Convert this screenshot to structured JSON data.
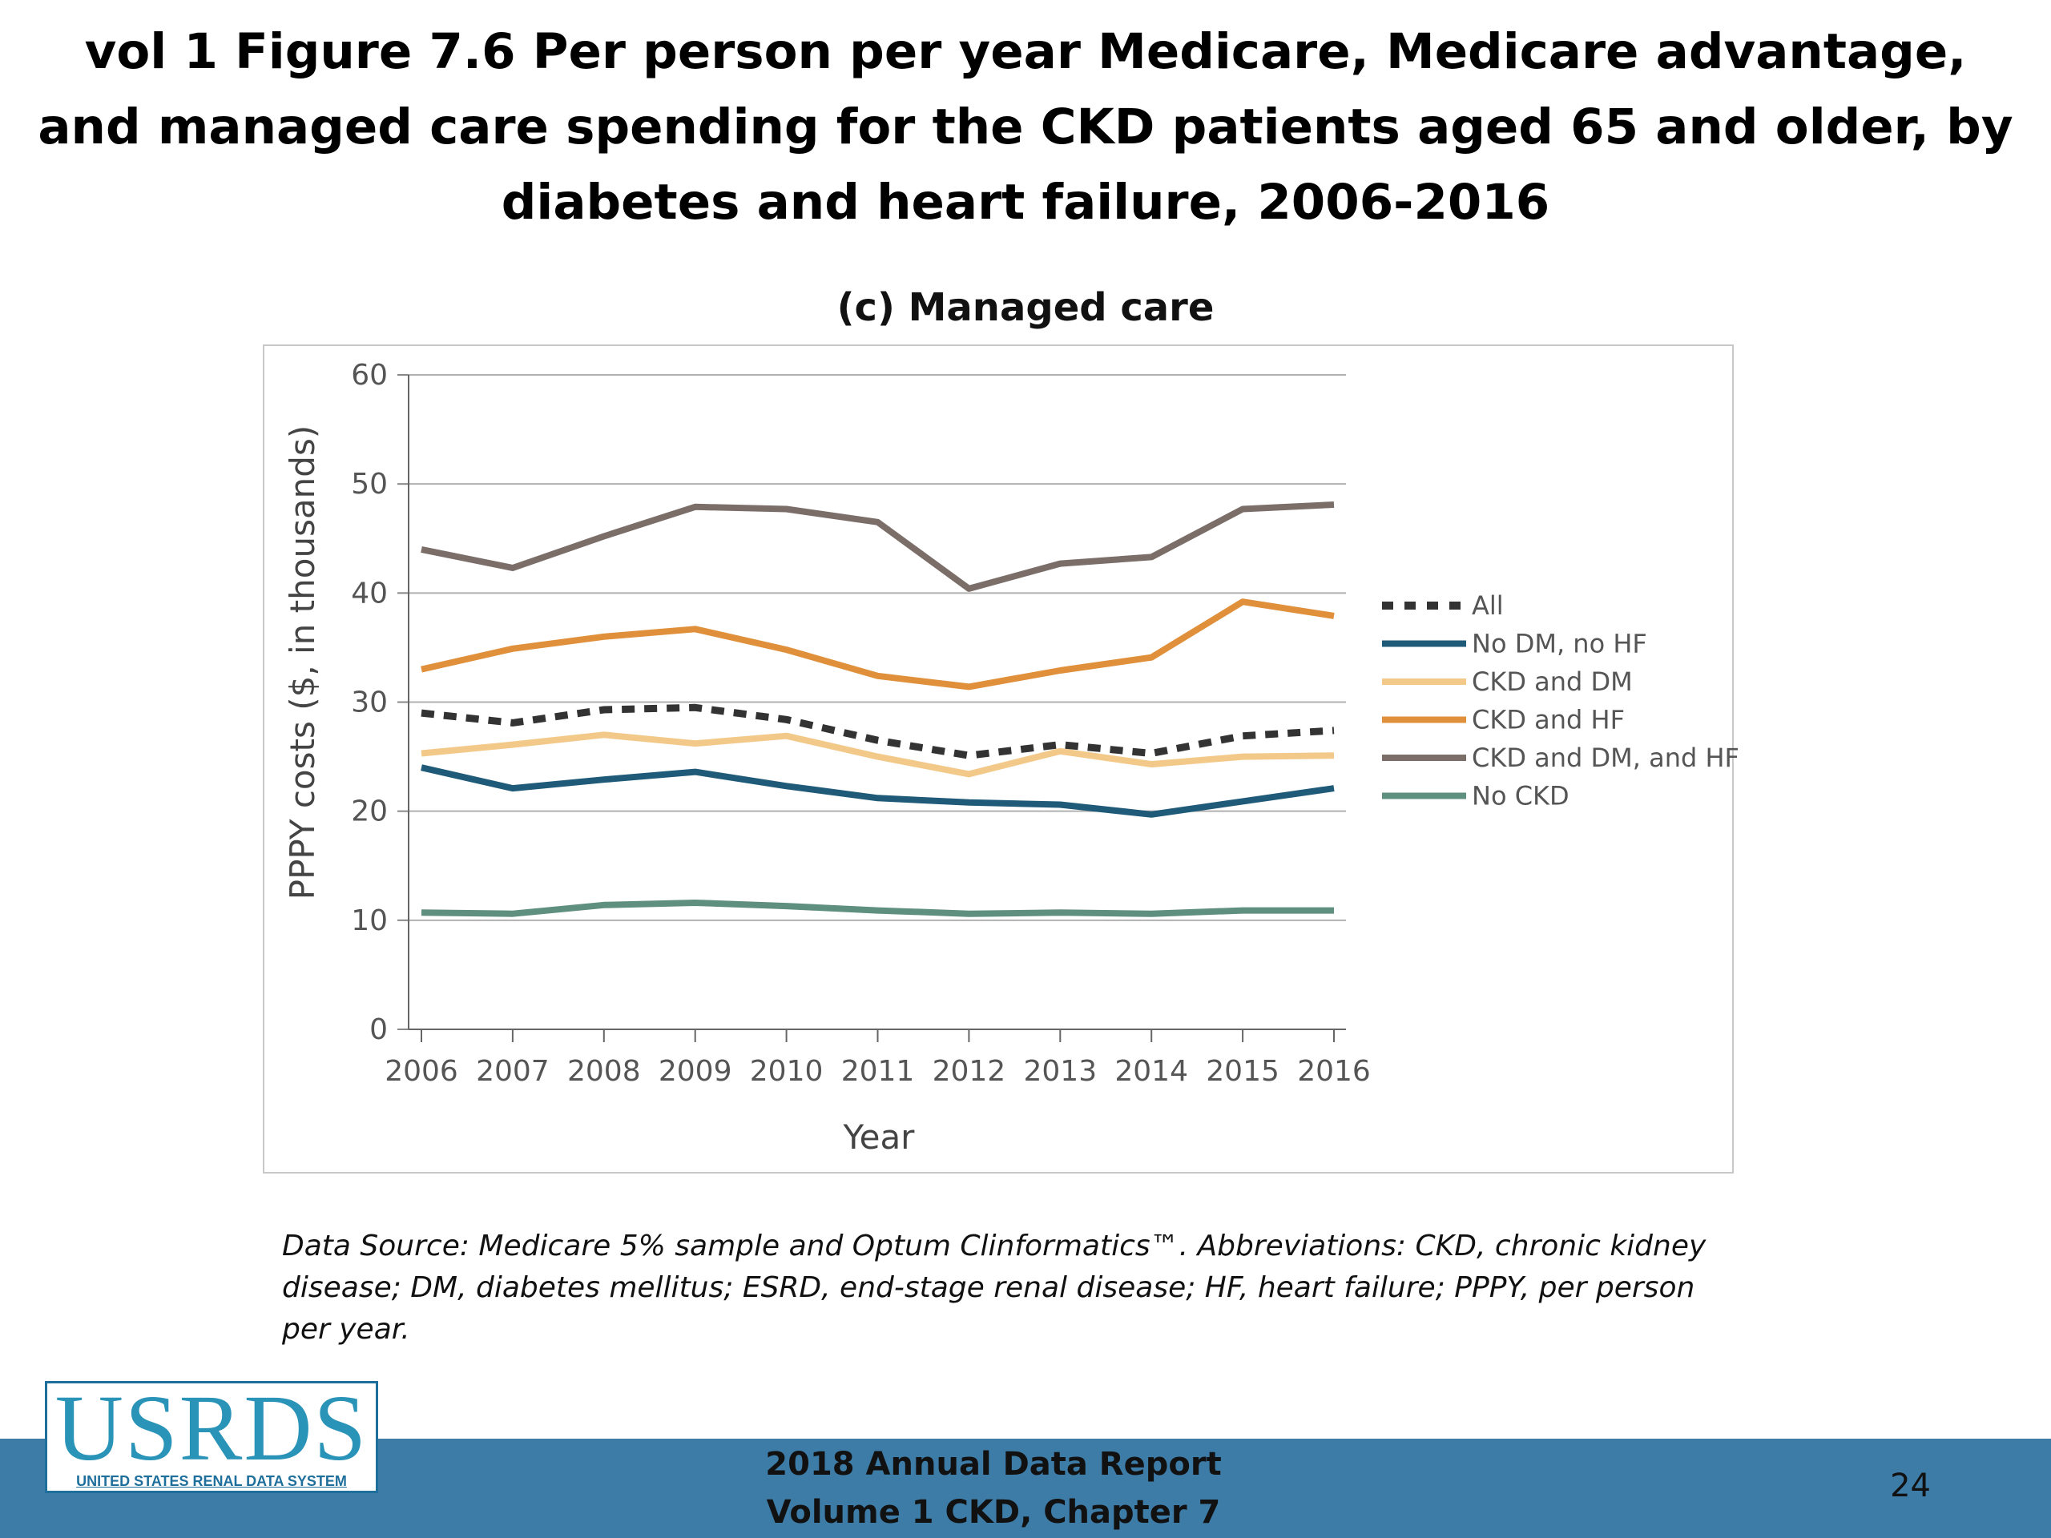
{
  "slide": {
    "title": "vol 1 Figure 7.6 Per person per year Medicare, Medicare advantage, and managed care spending for the CKD patients aged 65 and older, by diabetes and heart failure, 2006-2016",
    "note": "Data Source: Medicare 5% sample and Optum Clinformatics™. Abbreviations: CKD, chronic kidney disease; DM, diabetes mellitus; ESRD, end-stage renal disease; HF, heart failure; PPPY, per person per year.",
    "page_number": "24"
  },
  "footer": {
    "line1": "2018 Annual Data Report",
    "line2": "Volume 1 CKD, Chapter 7"
  },
  "logo": {
    "main": "USRDS",
    "sub": "UNITED STATES RENAL DATA SYSTEM"
  },
  "colors": {
    "footer_band": "#3e7ca8",
    "gridline": "#b0b0b0"
  },
  "chart_data": {
    "type": "line",
    "title": "(c) Managed care",
    "xlabel": "Year",
    "ylabel": "PPPY costs ($, in thousands)",
    "ylim": [
      0,
      60
    ],
    "yticks": [
      0,
      10,
      20,
      30,
      40,
      50,
      60
    ],
    "grid": true,
    "legend_position": "right",
    "x": [
      "2006",
      "2007",
      "2008",
      "2009",
      "2010",
      "2011",
      "2012",
      "2013",
      "2014",
      "2015",
      "2016"
    ],
    "series": [
      {
        "name": "All",
        "color": "#333333",
        "style": "dashed",
        "values": [
          29.0,
          28.1,
          29.3,
          29.5,
          28.4,
          26.5,
          25.1,
          26.1,
          25.3,
          26.9,
          27.4
        ]
      },
      {
        "name": "No DM, no HF",
        "color": "#1f5a78",
        "style": "solid",
        "values": [
          24.0,
          22.1,
          22.9,
          23.6,
          22.3,
          21.2,
          20.8,
          20.6,
          19.7,
          20.9,
          22.1
        ]
      },
      {
        "name": "CKD and DM",
        "color": "#f3c98a",
        "style": "solid",
        "values": [
          25.3,
          26.1,
          27.0,
          26.2,
          26.9,
          25.0,
          23.4,
          25.5,
          24.3,
          25.0,
          25.1
        ]
      },
      {
        "name": "CKD and HF",
        "color": "#e08f3a",
        "style": "solid",
        "values": [
          33.0,
          34.9,
          36.0,
          36.7,
          34.8,
          32.4,
          31.4,
          32.9,
          34.1,
          39.2,
          37.9
        ]
      },
      {
        "name": "CKD and DM, and HF",
        "color": "#7b6e69",
        "style": "solid",
        "values": [
          44.0,
          42.3,
          45.2,
          47.9,
          47.7,
          46.5,
          40.4,
          42.7,
          43.3,
          47.7,
          48.1
        ]
      },
      {
        "name": "No CKD",
        "color": "#5f8f7f",
        "style": "solid",
        "values": [
          10.7,
          10.6,
          11.4,
          11.6,
          11.3,
          10.9,
          10.6,
          10.7,
          10.6,
          10.9,
          10.9
        ]
      }
    ]
  }
}
